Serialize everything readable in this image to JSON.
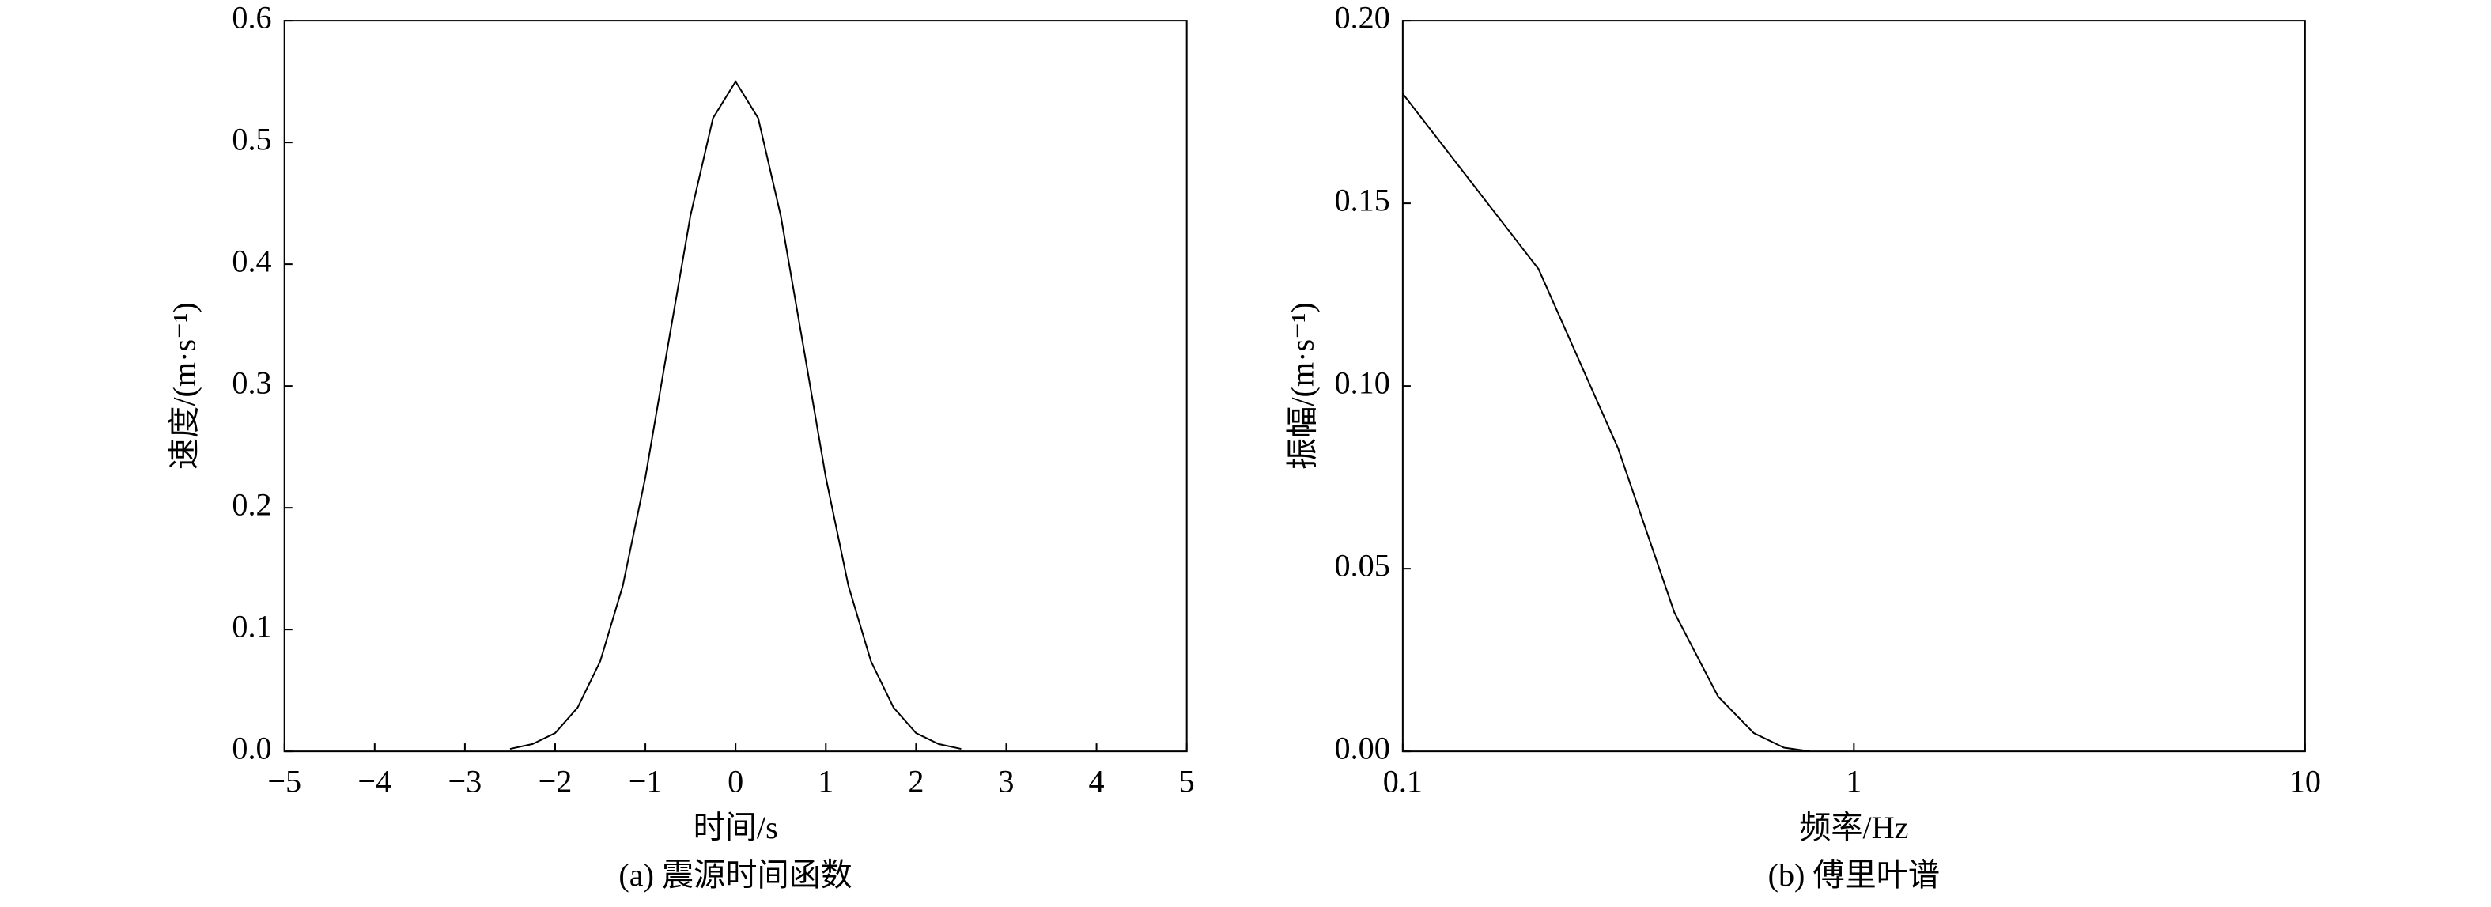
{
  "chart_data": [
    {
      "type": "line",
      "title": "(a) 震源时间函数",
      "x_label": "时间/s",
      "y_label": "速度/(m·s⁻¹)",
      "x": [
        -2.5,
        -2.25,
        -2,
        -1.75,
        -1.5,
        -1.25,
        -1,
        -0.75,
        -0.5,
        -0.25,
        0,
        0.25,
        0.5,
        0.75,
        1,
        1.25,
        1.5,
        1.75,
        2,
        2.25,
        2.5
      ],
      "values": [
        0.002,
        0.006,
        0.015,
        0.036,
        0.074,
        0.136,
        0.225,
        0.333,
        0.44,
        0.52,
        0.55,
        0.52,
        0.44,
        0.333,
        0.225,
        0.136,
        0.074,
        0.036,
        0.015,
        0.006,
        0.002
      ],
      "color": "#000000",
      "xlim": [
        -5,
        5
      ],
      "xticks": [
        {
          "value": -5,
          "label": "−5"
        },
        {
          "value": -4,
          "label": "−4"
        },
        {
          "value": -3,
          "label": "−3"
        },
        {
          "value": -2,
          "label": "−2"
        },
        {
          "value": -1,
          "label": "−1"
        },
        0,
        1,
        2,
        3,
        4,
        5
      ],
      "ylim": [
        0,
        0.6
      ],
      "yticks": [
        {
          "value": 0,
          "label": "0.0"
        },
        0.1,
        0.2,
        0.3,
        0.4,
        0.5,
        0.6
      ],
      "xlog": false
    },
    {
      "type": "line",
      "title": "(b) 傅里叶谱",
      "x_label": "频率/Hz",
      "y_label": "振幅/(m·s⁻¹)",
      "x": [
        0.1,
        0.2,
        0.3,
        0.4,
        0.5,
        0.6,
        0.7,
        0.8
      ],
      "values": [
        0.18,
        0.132,
        0.083,
        0.038,
        0.015,
        0.005,
        0.001,
        0
      ],
      "color": "#000000",
      "xlim": [
        0.1,
        10
      ],
      "xticks": [
        0.1,
        1,
        10
      ],
      "ylim": [
        0,
        0.2
      ],
      "yticks": [
        {
          "value": 0,
          "label": "0.00"
        },
        0.05,
        {
          "value": 0.1,
          "label": "0.10"
        },
        0.15,
        {
          "value": 0.2,
          "label": "0.20"
        }
      ],
      "xlog": true
    }
  ]
}
